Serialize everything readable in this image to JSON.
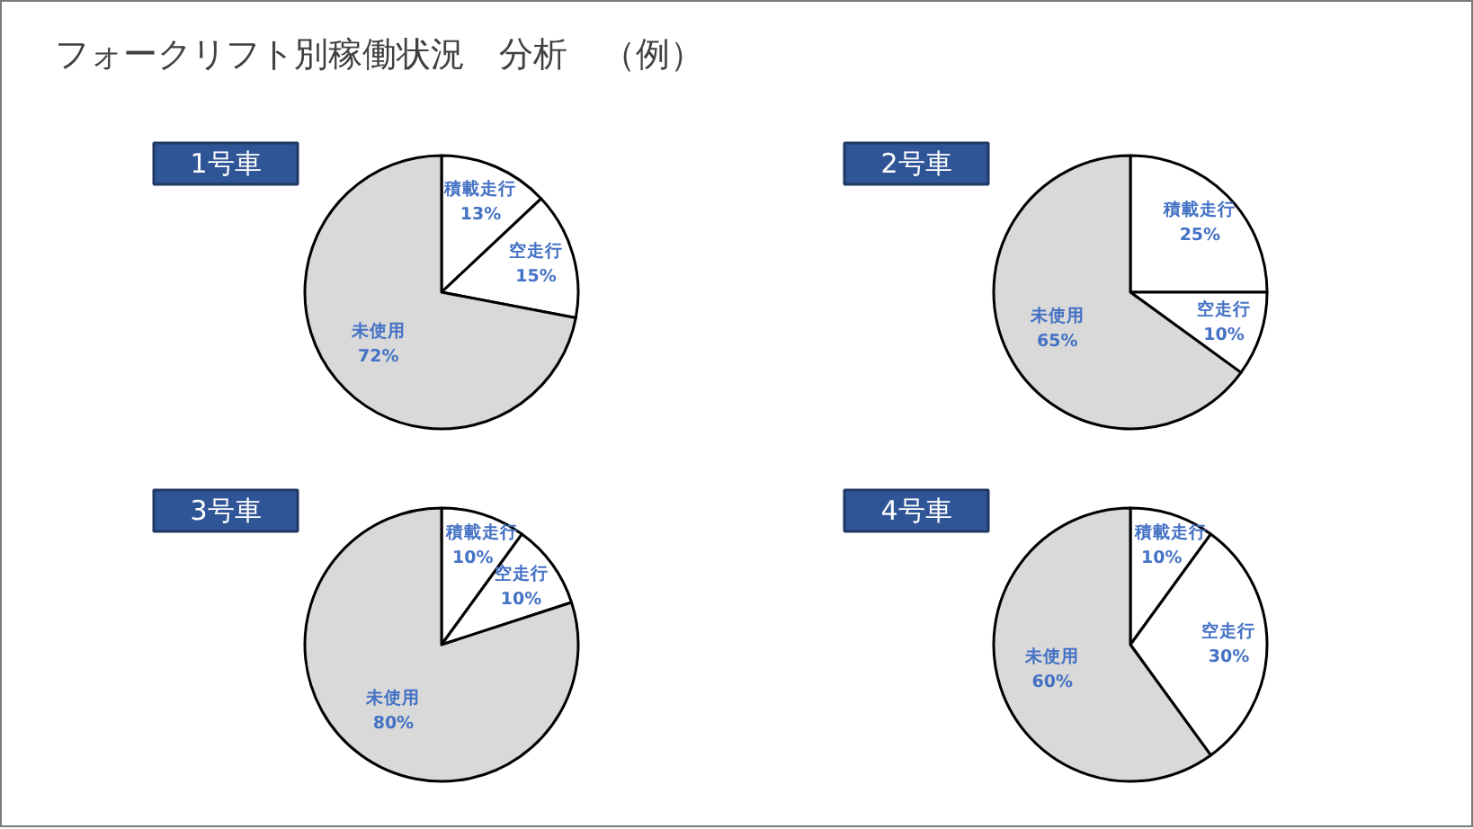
{
  "chart_data": [
    {
      "type": "other",
      "title": "フォークリフト別稼働状況　分析　（例）"
    },
    {
      "type": "pie",
      "title": "1号車",
      "categories": [
        "積載走行",
        "空走行",
        "未使用"
      ],
      "values": [
        13,
        15,
        72
      ],
      "colors": [
        "#ffffff",
        "#ffffff",
        "#d9d9d9"
      ],
      "value_labels": [
        "13%",
        "15%",
        "72%"
      ]
    },
    {
      "type": "pie",
      "title": "2号車",
      "categories": [
        "積載走行",
        "空走行",
        "未使用"
      ],
      "values": [
        25,
        10,
        65
      ],
      "colors": [
        "#ffffff",
        "#ffffff",
        "#d9d9d9"
      ],
      "value_labels": [
        "25%",
        "10%",
        "65%"
      ]
    },
    {
      "type": "pie",
      "title": "3号車",
      "categories": [
        "積載走行",
        "空走行",
        "未使用"
      ],
      "values": [
        10,
        10,
        80
      ],
      "colors": [
        "#ffffff",
        "#ffffff",
        "#d9d9d9"
      ],
      "value_labels": [
        "10%",
        "10%",
        "80%"
      ]
    },
    {
      "type": "pie",
      "title": "4号車",
      "categories": [
        "積載走行",
        "空走行",
        "未使用"
      ],
      "values": [
        10,
        30,
        60
      ],
      "colors": [
        "#ffffff",
        "#ffffff",
        "#d9d9d9"
      ],
      "value_labels": [
        "10%",
        "30%",
        "60%"
      ]
    }
  ]
}
